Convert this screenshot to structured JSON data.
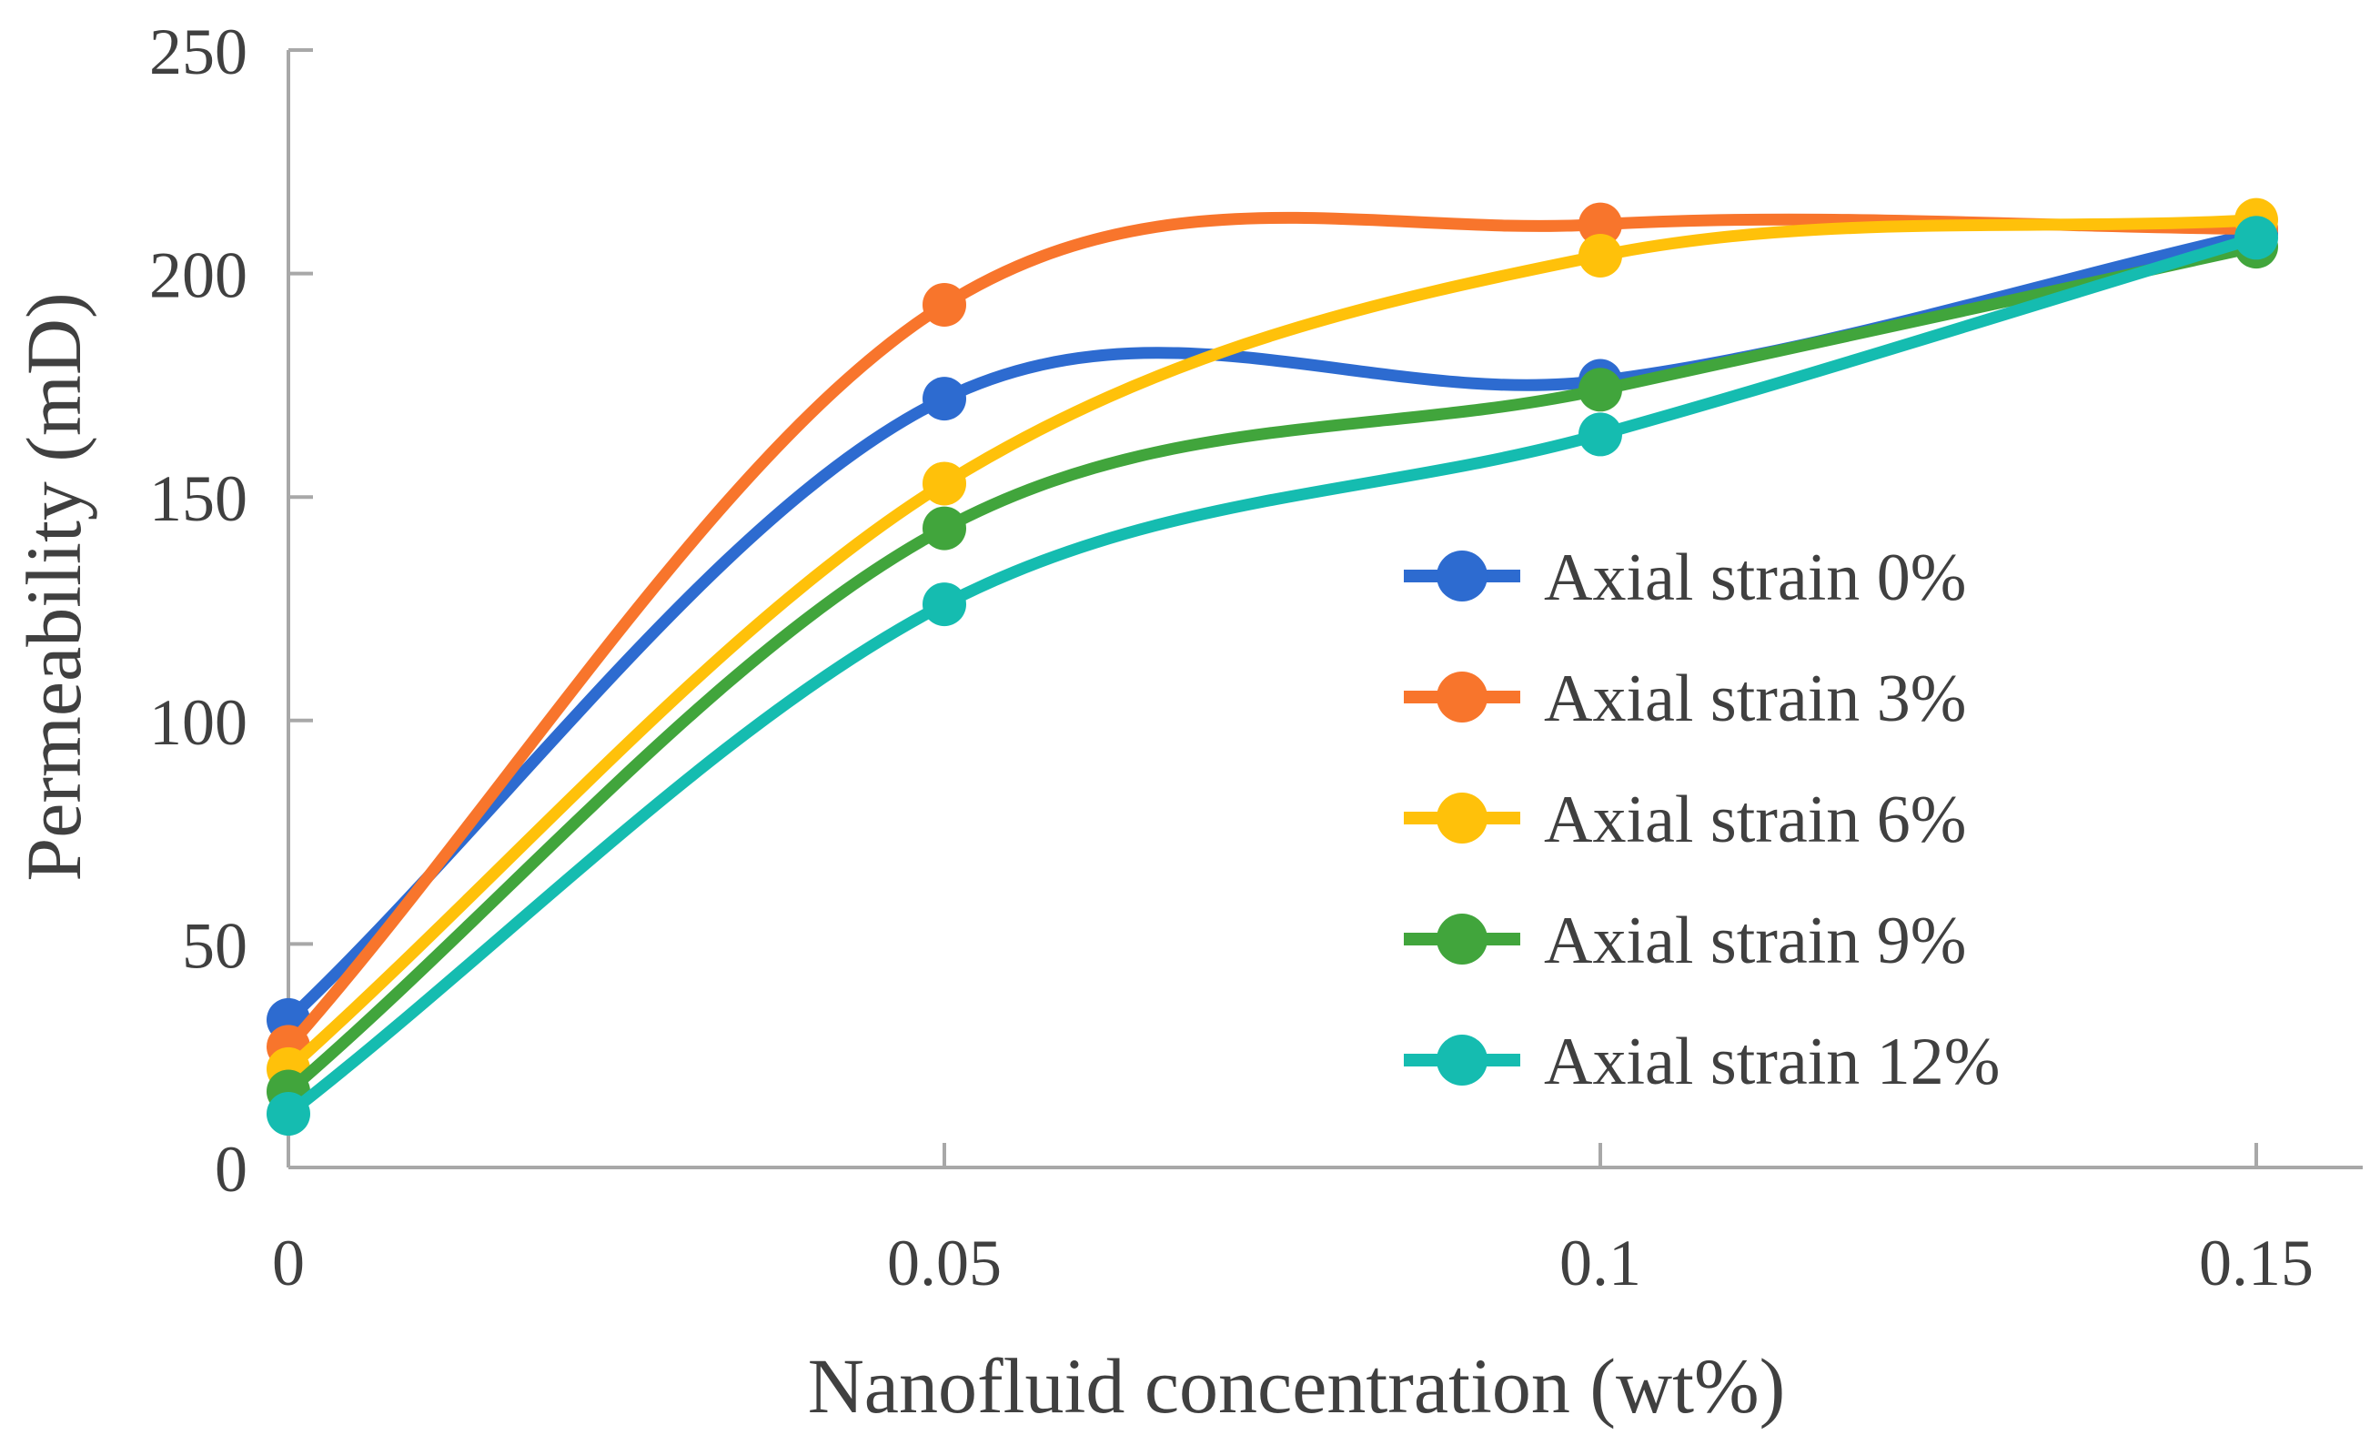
{
  "figure": {
    "background": "#FFFFFF",
    "axis_color": "#A8A8A8",
    "text_color": "#404040"
  },
  "chart_data": {
    "type": "line",
    "smoothed": true,
    "marker": "circle",
    "grid": false,
    "title": "",
    "xlabel": "Nanofluid concentration (wt%)",
    "ylabel": "Permeability (mD)",
    "x": [
      0,
      0.05,
      0.1,
      0.15
    ],
    "x_tick_labels": [
      "0",
      "0.05",
      "0.1",
      "0.15"
    ],
    "y_ticks": [
      0,
      50,
      100,
      150,
      200,
      250
    ],
    "y_tick_labels": [
      "0",
      "50",
      "100",
      "150",
      "200",
      "250"
    ],
    "xlim": [
      0,
      0.15
    ],
    "ylim": [
      0,
      250
    ],
    "legend_position": "inside-right",
    "series": [
      {
        "name": "Axial strain 0%",
        "color": "#2D6BD0",
        "values": [
          33,
          172,
          176,
          209
        ]
      },
      {
        "name": "Axial strain 3%",
        "color": "#F8752C",
        "values": [
          27,
          193,
          211,
          210
        ]
      },
      {
        "name": "Axial strain 6%",
        "color": "#FFC10A",
        "values": [
          22,
          153,
          204,
          212
        ]
      },
      {
        "name": "Axial strain 9%",
        "color": "#41A53C",
        "values": [
          17,
          143,
          174,
          206
        ]
      },
      {
        "name": "Axial strain 12%",
        "color": "#15BCB0",
        "values": [
          12,
          126,
          164,
          208
        ]
      }
    ]
  }
}
